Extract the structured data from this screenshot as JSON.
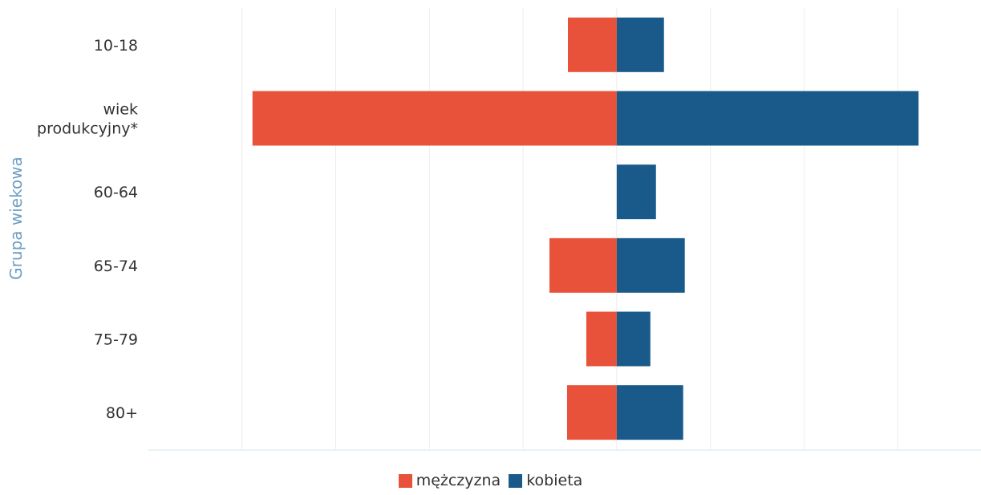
{
  "chart_data": {
    "type": "bar",
    "orientation": "horizontal",
    "stacked": "diverging",
    "categories": [
      "10-18",
      [
        "wiek",
        "produkcyjny*"
      ],
      "60-64",
      "65-74",
      "75-79",
      "80+"
    ],
    "series": [
      {
        "name": "mężczyzna",
        "color": "#e8513a",
        "values": [
          -61,
          -455,
          0,
          -84,
          -38,
          -62
        ]
      },
      {
        "name": "kobieta",
        "color": "#1a5a8a",
        "values": [
          59,
          377,
          49,
          85,
          42,
          83
        ]
      }
    ],
    "ylabel": "Grupa wiekowa",
    "xlabel": "",
    "xlim": [
      -585,
      455
    ],
    "grid": true,
    "gridlines": [
      -468,
      -351,
      -234,
      -117,
      0,
      117,
      234,
      351
    ],
    "legend_position": "bottom"
  }
}
